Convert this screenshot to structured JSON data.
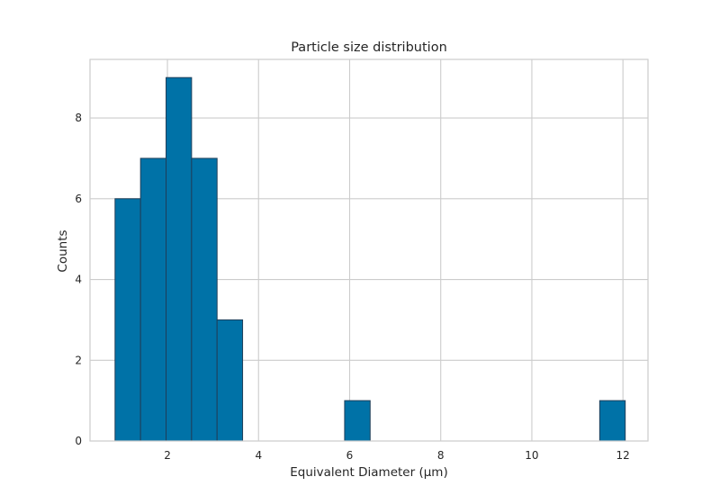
{
  "chart_data": {
    "type": "bar",
    "title": "Particle size distribution",
    "xlabel": "Equivalent Diameter (µm)",
    "ylabel": "Counts",
    "xlim": [
      0.3,
      12.55
    ],
    "ylim": [
      0,
      9.45
    ],
    "xticks": [
      2,
      4,
      6,
      8,
      10,
      12
    ],
    "yticks": [
      0,
      2,
      4,
      6,
      8
    ],
    "grid": true,
    "bar_color": "#0072a7",
    "edge_color": "#1f3f5a",
    "bins": [
      {
        "x0": 0.85,
        "x1": 1.41,
        "count": 6
      },
      {
        "x0": 1.41,
        "x1": 1.97,
        "count": 7
      },
      {
        "x0": 1.97,
        "x1": 2.53,
        "count": 9
      },
      {
        "x0": 2.53,
        "x1": 3.09,
        "count": 7
      },
      {
        "x0": 3.09,
        "x1": 3.65,
        "count": 3
      },
      {
        "x0": 3.65,
        "x1": 4.21,
        "count": 0
      },
      {
        "x0": 4.21,
        "x1": 4.77,
        "count": 0
      },
      {
        "x0": 4.77,
        "x1": 5.33,
        "count": 0
      },
      {
        "x0": 5.33,
        "x1": 5.89,
        "count": 0
      },
      {
        "x0": 5.89,
        "x1": 6.45,
        "count": 1
      },
      {
        "x0": 6.45,
        "x1": 7.01,
        "count": 0
      },
      {
        "x0": 7.01,
        "x1": 7.57,
        "count": 0
      },
      {
        "x0": 7.57,
        "x1": 8.13,
        "count": 0
      },
      {
        "x0": 8.13,
        "x1": 8.69,
        "count": 0
      },
      {
        "x0": 8.69,
        "x1": 9.25,
        "count": 0
      },
      {
        "x0": 9.25,
        "x1": 9.81,
        "count": 0
      },
      {
        "x0": 9.81,
        "x1": 10.37,
        "count": 0
      },
      {
        "x0": 10.37,
        "x1": 10.93,
        "count": 0
      },
      {
        "x0": 10.93,
        "x1": 11.49,
        "count": 0
      },
      {
        "x0": 11.49,
        "x1": 12.05,
        "count": 1
      }
    ]
  }
}
